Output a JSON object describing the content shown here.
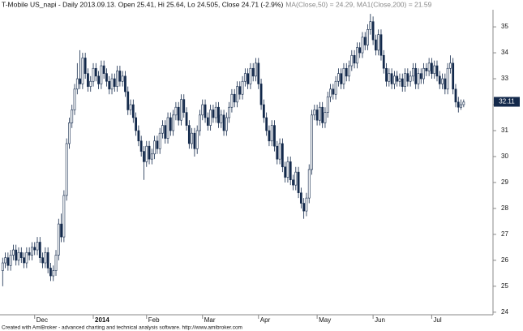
{
  "chart_data": {
    "type": "candlestick",
    "title": "T-Mobile US_napi - Daily 2013.09.13.  Open 25.41, Hi 25.64, Lo 24.505, Close 24.71 (-2.9%)",
    "subtitle": "MA(Close,50) = 24.29, MA1(Close,200) = 21.59",
    "footer": "Created with AmiBroker - advanced charting and technical analysis software. http://www.amibroker.com",
    "up_color": "#ffffff",
    "down_color": "#13294b",
    "edge_color": "#13294b",
    "last_value": 32.11,
    "ylim": [
      23.9,
      35.66
    ],
    "yticks": [
      24,
      25,
      26,
      27,
      28,
      29,
      30,
      31,
      32,
      33,
      34,
      35
    ],
    "xlim": [
      -1,
      184
    ],
    "xticks": [
      {
        "value": 12,
        "label": "Dec"
      },
      {
        "value": 34,
        "label": "2014"
      },
      {
        "value": 54,
        "label": "Feb"
      },
      {
        "value": 75,
        "label": "Mar"
      },
      {
        "value": 96,
        "label": "Apr"
      },
      {
        "value": 118,
        "label": "May"
      },
      {
        "value": 139,
        "label": "Jun"
      },
      {
        "value": 161,
        "label": "Jul"
      }
    ],
    "open": [
      25.6,
      25.9,
      26.1,
      25.8,
      26.2,
      26.4,
      26.0,
      26.3,
      26.1,
      25.9,
      26.3,
      26.2,
      26.5,
      26.4,
      26.7,
      26.1,
      25.9,
      26.3,
      25.7,
      25.4,
      25.6,
      26.2,
      27.4,
      26.9,
      28.5,
      30.5,
      31.3,
      31.8,
      32.6,
      33.0,
      32.8,
      33.8,
      33.2,
      32.7,
      32.9,
      33.4,
      33.1,
      32.8,
      33.5,
      33.2,
      32.9,
      32.6,
      33.0,
      32.7,
      33.3,
      32.9,
      33.1,
      32.5,
      31.8,
      32.0,
      31.5,
      31.0,
      30.6,
      30.2,
      29.8,
      30.4,
      29.9,
      30.1,
      30.6,
      30.3,
      30.9,
      31.2,
      30.7,
      31.5,
      31.0,
      31.6,
      31.9,
      31.4,
      32.2,
      31.7,
      31.2,
      30.5,
      30.9,
      30.3,
      31.0,
      31.6,
      32.0,
      31.5,
      31.2,
      31.8,
      31.5,
      31.9,
      31.3,
      31.6,
      31.0,
      31.5,
      31.9,
      32.4,
      32.1,
      32.7,
      32.4,
      32.9,
      33.2,
      32.8,
      33.4,
      33.1,
      33.6,
      32.8,
      32.0,
      31.5,
      31.0,
      30.6,
      31.2,
      30.4,
      29.9,
      30.5,
      29.6,
      29.2,
      29.8,
      29.1,
      28.9,
      29.4,
      28.6,
      28.2,
      27.9,
      28.4,
      29.5,
      31.6,
      31.8,
      31.4,
      31.9,
      31.3,
      31.7,
      32.3,
      32.6,
      32.4,
      32.9,
      33.2,
      32.8,
      33.4,
      33.1,
      33.5,
      33.9,
      33.6,
      34.2,
      34.0,
      34.6,
      34.3,
      34.9,
      35.2,
      34.5,
      34.1,
      34.7,
      33.9,
      33.4,
      32.9,
      33.2,
      32.8,
      33.1,
      32.9,
      33.0,
      32.7,
      33.2,
      32.9,
      33.1,
      33.4,
      32.8,
      33.2,
      33.0,
      33.4,
      33.3,
      33.6,
      33.2,
      33.5,
      33.1,
      32.8,
      33.0,
      32.6,
      33.4,
      33.6,
      32.6,
      32.1,
      31.9,
      32.0
    ],
    "high": [
      26.1,
      26.3,
      26.3,
      26.4,
      26.6,
      26.6,
      26.5,
      26.5,
      26.3,
      26.5,
      26.5,
      26.7,
      26.7,
      26.9,
      26.9,
      26.3,
      26.5,
      26.5,
      25.9,
      25.8,
      26.4,
      27.6,
      27.8,
      28.7,
      30.7,
      31.5,
      32.0,
      32.8,
      33.6,
      34.1,
      34.0,
      34.0,
      33.4,
      33.1,
      33.6,
      33.6,
      33.3,
      33.7,
      33.7,
      33.4,
      33.1,
      33.2,
      33.2,
      33.5,
      33.5,
      33.3,
      33.3,
      32.7,
      32.2,
      32.2,
      31.7,
      31.2,
      30.8,
      30.4,
      30.6,
      30.6,
      30.3,
      30.8,
      30.8,
      31.1,
      31.4,
      31.4,
      31.7,
      31.7,
      31.8,
      32.1,
      32.1,
      32.4,
      32.4,
      31.9,
      31.4,
      31.1,
      31.1,
      31.2,
      31.8,
      32.2,
      32.2,
      31.7,
      32.0,
      32.0,
      32.1,
      32.1,
      31.8,
      31.8,
      31.7,
      32.1,
      32.6,
      32.6,
      32.9,
      32.9,
      33.1,
      33.4,
      33.4,
      33.6,
      33.6,
      33.8,
      33.8,
      33.0,
      32.2,
      31.7,
      31.2,
      31.4,
      31.4,
      30.6,
      30.7,
      30.7,
      29.8,
      30.0,
      30.0,
      29.3,
      29.6,
      29.6,
      28.8,
      28.4,
      28.6,
      29.7,
      31.8,
      32.0,
      32.0,
      32.1,
      32.1,
      31.9,
      32.5,
      32.8,
      32.8,
      33.1,
      33.4,
      33.4,
      33.6,
      33.6,
      33.7,
      34.1,
      34.1,
      34.4,
      34.4,
      34.8,
      34.8,
      35.1,
      35.5,
      35.4,
      34.7,
      34.9,
      34.9,
      34.1,
      33.6,
      33.4,
      33.4,
      33.3,
      33.3,
      33.2,
      33.2,
      33.4,
      33.4,
      33.3,
      33.6,
      33.6,
      33.4,
      33.4,
      33.6,
      33.6,
      33.8,
      33.8,
      33.7,
      33.7,
      33.3,
      33.2,
      33.2,
      33.6,
      33.9,
      33.8,
      32.8,
      32.3,
      32.2,
      32.2
    ],
    "low": [
      25.0,
      25.7,
      25.6,
      25.6,
      26.0,
      25.8,
      25.8,
      25.9,
      25.7,
      25.7,
      26.0,
      26.0,
      26.2,
      26.2,
      25.9,
      25.7,
      25.7,
      25.5,
      25.2,
      25.2,
      25.4,
      26.0,
      26.7,
      26.7,
      28.3,
      30.3,
      31.1,
      31.6,
      32.4,
      32.6,
      32.6,
      33.0,
      32.5,
      32.5,
      32.7,
      32.9,
      32.6,
      32.6,
      33.0,
      32.7,
      32.4,
      32.4,
      32.5,
      32.5,
      32.7,
      32.7,
      32.3,
      31.6,
      31.6,
      31.3,
      30.8,
      30.4,
      30.0,
      29.1,
      29.6,
      29.7,
      29.7,
      29.9,
      30.1,
      30.1,
      30.7,
      30.5,
      30.5,
      30.8,
      30.8,
      31.4,
      31.2,
      31.2,
      31.5,
      31.0,
      30.3,
      30.3,
      30.0,
      30.1,
      30.8,
      31.4,
      31.3,
      31.0,
      31.0,
      31.3,
      31.3,
      31.1,
      31.1,
      30.8,
      30.8,
      31.3,
      31.7,
      31.9,
      31.9,
      32.2,
      32.2,
      32.7,
      32.6,
      32.6,
      32.9,
      32.9,
      32.6,
      31.8,
      31.3,
      30.8,
      30.4,
      30.4,
      30.2,
      29.7,
      29.7,
      29.4,
      29.0,
      29.0,
      28.9,
      28.7,
      28.7,
      28.4,
      28.0,
      27.6,
      27.7,
      28.2,
      29.3,
      31.4,
      31.2,
      31.2,
      31.1,
      31.1,
      31.5,
      32.1,
      32.2,
      32.2,
      32.7,
      32.6,
      32.6,
      32.9,
      32.9,
      33.3,
      33.4,
      33.4,
      33.8,
      33.8,
      34.1,
      34.1,
      34.7,
      34.3,
      33.9,
      33.9,
      33.7,
      33.2,
      32.7,
      32.7,
      32.6,
      32.6,
      32.7,
      32.7,
      32.5,
      32.5,
      32.7,
      32.7,
      32.9,
      32.6,
      32.6,
      32.8,
      32.8,
      33.1,
      33.1,
      33.0,
      33.0,
      32.9,
      32.6,
      32.6,
      32.4,
      32.4,
      33.2,
      32.4,
      31.9,
      31.7,
      31.8,
      31.9
    ],
    "close": [
      25.9,
      26.1,
      25.8,
      26.2,
      26.4,
      26.0,
      26.3,
      26.1,
      25.9,
      26.3,
      26.2,
      26.5,
      26.4,
      26.7,
      26.1,
      25.9,
      26.3,
      25.7,
      25.4,
      25.6,
      26.2,
      27.4,
      26.9,
      28.5,
      30.5,
      31.3,
      31.8,
      32.6,
      33.0,
      32.8,
      33.8,
      33.2,
      32.7,
      32.9,
      33.4,
      33.1,
      32.8,
      33.5,
      33.2,
      32.9,
      32.6,
      33.0,
      32.7,
      33.3,
      32.9,
      33.1,
      32.5,
      31.8,
      32.0,
      31.5,
      31.0,
      30.6,
      30.2,
      29.8,
      30.4,
      29.9,
      30.1,
      30.6,
      30.3,
      30.9,
      31.2,
      30.7,
      31.5,
      31.0,
      31.6,
      31.9,
      31.4,
      32.2,
      31.7,
      31.2,
      30.5,
      30.9,
      30.3,
      31.0,
      31.6,
      32.0,
      31.5,
      31.2,
      31.8,
      31.5,
      31.9,
      31.3,
      31.6,
      31.0,
      31.5,
      31.9,
      32.4,
      32.1,
      32.7,
      32.4,
      32.9,
      33.2,
      32.8,
      33.4,
      33.1,
      33.6,
      32.8,
      32.0,
      31.5,
      31.0,
      30.6,
      31.2,
      30.4,
      29.9,
      30.5,
      29.6,
      29.2,
      29.8,
      29.1,
      28.9,
      29.4,
      28.6,
      28.2,
      27.9,
      28.4,
      29.5,
      31.6,
      31.8,
      31.4,
      31.9,
      31.3,
      31.7,
      32.3,
      32.6,
      32.4,
      32.9,
      33.2,
      32.8,
      33.4,
      33.1,
      33.5,
      33.9,
      33.6,
      34.2,
      34.0,
      34.6,
      34.3,
      34.9,
      35.2,
      34.5,
      34.1,
      34.7,
      33.9,
      33.4,
      32.9,
      33.2,
      32.8,
      33.1,
      32.9,
      33.0,
      32.7,
      33.2,
      32.9,
      33.1,
      33.4,
      32.8,
      33.2,
      33.0,
      33.4,
      33.3,
      33.6,
      33.2,
      33.5,
      33.1,
      32.8,
      33.0,
      32.6,
      33.4,
      33.6,
      32.6,
      32.1,
      31.9,
      32.0,
      32.1
    ]
  }
}
